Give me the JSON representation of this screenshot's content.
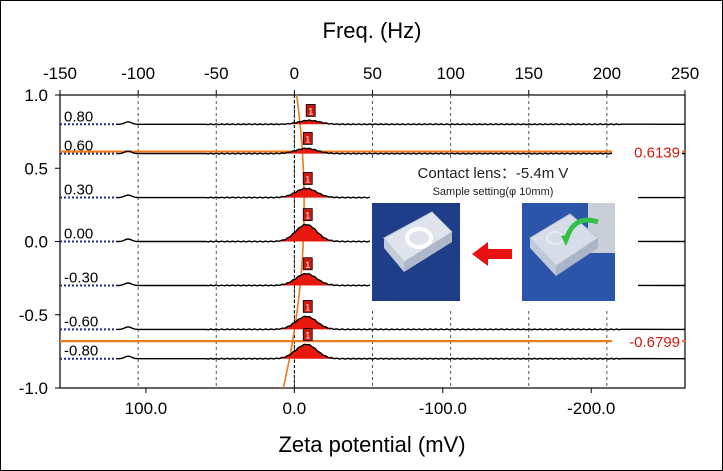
{
  "chart_data": {
    "type": "line",
    "title_top_axis": "Freq. (Hz)",
    "xlabel": "Zeta potential (mV)",
    "top_axis_ticks": [
      "-150",
      "-100",
      "-50",
      "0",
      "50",
      "100",
      "150",
      "200",
      "250"
    ],
    "top_axis_values": [
      -150,
      -100,
      -50,
      0,
      50,
      100,
      150,
      200,
      250
    ],
    "top_axis_range": [
      -150,
      250
    ],
    "bottom_axis_ticks": [
      "100.0",
      "0.0",
      "-100.0",
      "-200.0"
    ],
    "bottom_axis_values": [
      100,
      0,
      -100,
      -200
    ],
    "y_ticks": [
      "1.0",
      "0.5",
      "0.0",
      "-0.5",
      "-1.0"
    ],
    "y_values": [
      1.0,
      0.5,
      0.0,
      -0.5,
      -1.0
    ],
    "ylim": [
      -1.0,
      1.0
    ],
    "grid": "vertical dashed",
    "series": [
      {
        "label": "0.80",
        "position": 0.8,
        "peak_zeta_mV": -10,
        "peak_height": 0.03
      },
      {
        "label": "0.60",
        "position": 0.6,
        "peak_zeta_mV": -8,
        "peak_height": 0.04
      },
      {
        "label": "0.30",
        "position": 0.3,
        "peak_zeta_mV": -8,
        "peak_height": 0.07
      },
      {
        "label": "0.00",
        "position": 0.0,
        "peak_zeta_mV": -8,
        "peak_height": 0.13
      },
      {
        "label": "-0.30",
        "position": -0.3,
        "peak_zeta_mV": -8,
        "peak_height": 0.09
      },
      {
        "label": "-0.60",
        "position": -0.6,
        "peak_zeta_mV": -8,
        "peak_height": 0.1
      },
      {
        "label": "-0.80",
        "position": -0.8,
        "peak_zeta_mV": -8,
        "peak_height": 0.11
      }
    ],
    "boundaries": [
      {
        "label": "0.6139",
        "value": 0.6139
      },
      {
        "label": "-0.6799",
        "value": -0.6799
      }
    ],
    "peak_marker": "1",
    "colors": {
      "trace": "#000000",
      "fill": "#e8180e",
      "orange": "#ee7a1a",
      "baseline": "#1d2a8c",
      "annotation": "#d41a0e"
    }
  },
  "inset": {
    "title": "Contact lens：-5.4m V",
    "subtitle": "Sample setting(φ 10mm)"
  }
}
